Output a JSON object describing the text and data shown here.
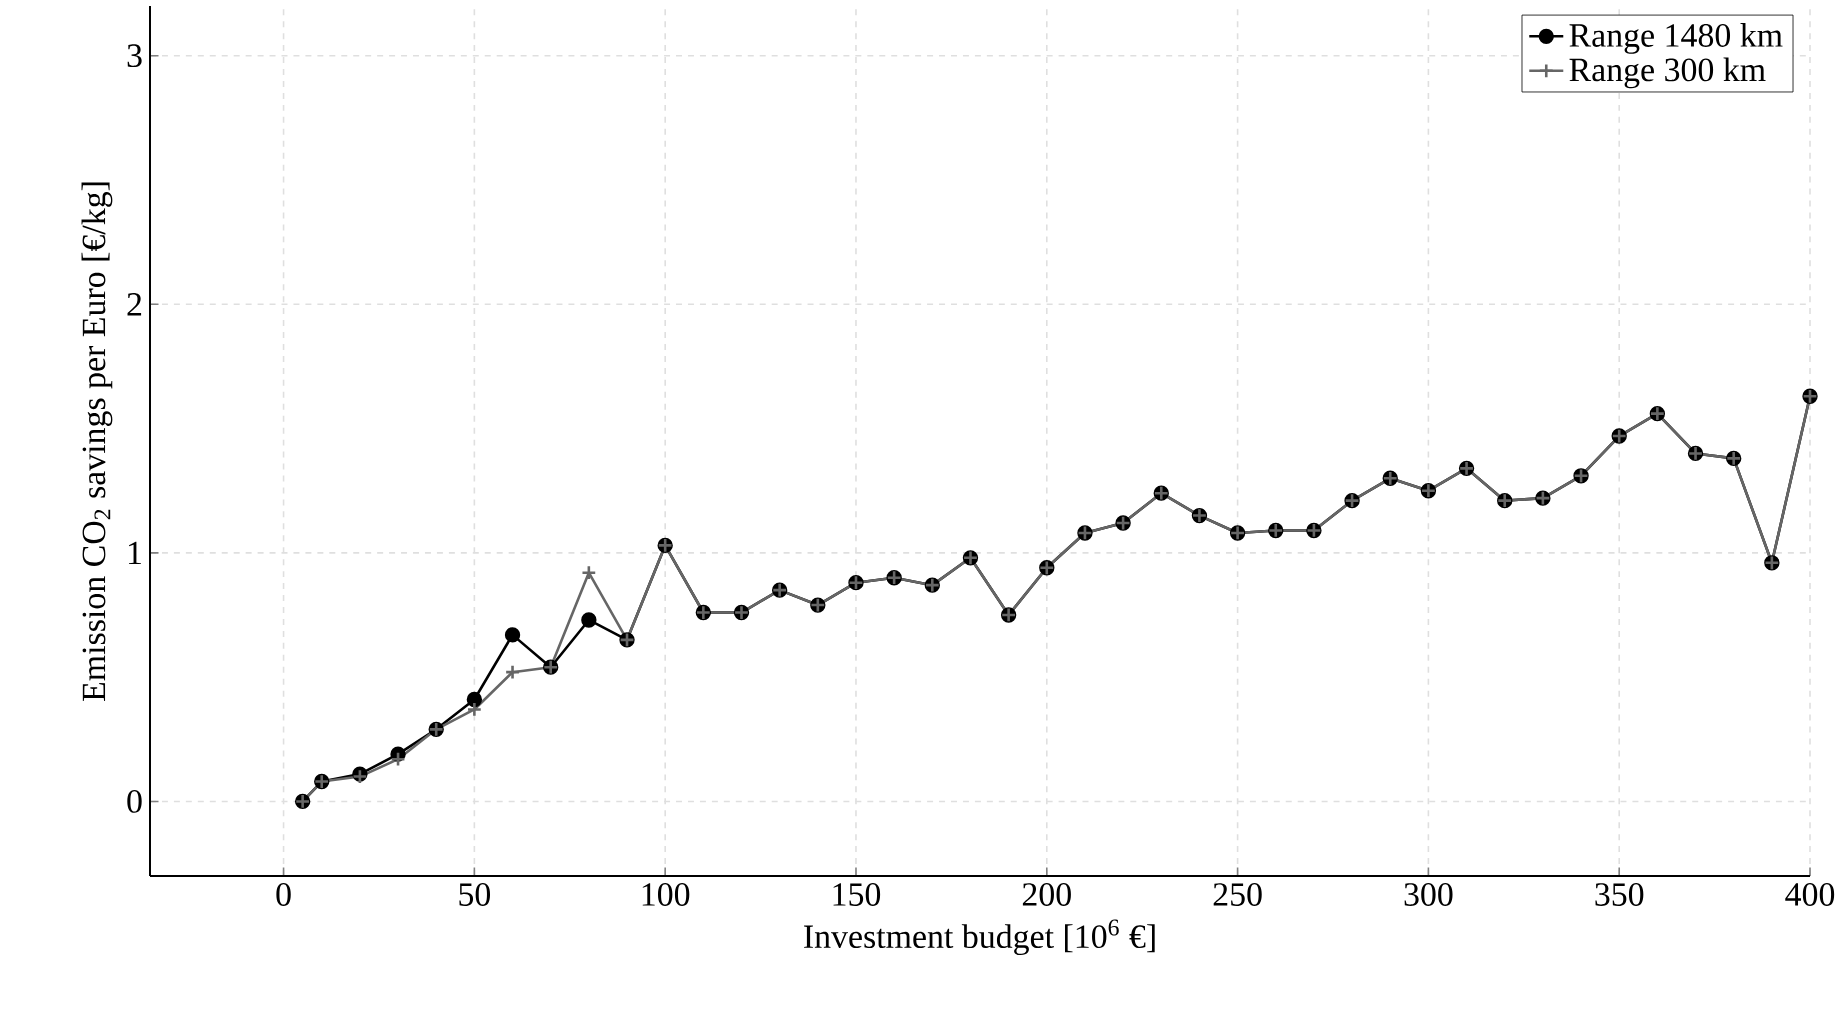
{
  "chart_data": {
    "type": "line",
    "xlabel": "Investment budget [10$^{6}$ €]",
    "ylabel": "Emission CO$_{2}$ savings per Euro [€/kg]",
    "x": [
      5,
      10,
      20,
      30,
      40,
      50,
      60,
      70,
      80,
      90,
      100,
      110,
      120,
      130,
      140,
      150,
      160,
      170,
      180,
      190,
      200,
      210,
      220,
      230,
      240,
      250,
      260,
      270,
      280,
      290,
      300,
      310,
      320,
      330,
      340,
      350,
      360,
      370,
      380,
      390,
      400
    ],
    "series": [
      {
        "name": "Range 1480 km",
        "color": "#000000",
        "marker": "circle",
        "values": [
          0.0,
          0.08,
          0.11,
          0.19,
          0.29,
          0.41,
          0.67,
          0.54,
          0.73,
          0.65,
          1.03,
          0.76,
          0.76,
          0.85,
          0.79,
          0.88,
          0.9,
          0.87,
          0.98,
          0.75,
          0.94,
          1.08,
          1.12,
          1.24,
          1.15,
          1.08,
          1.09,
          1.09,
          1.21,
          1.3,
          1.25,
          1.34,
          1.21,
          1.22,
          1.31,
          1.47,
          1.56,
          1.4,
          1.38,
          0.96,
          1.63
        ]
      },
      {
        "name": "Range 300 km",
        "color": "#666666",
        "marker": "cross",
        "values": [
          0.0,
          0.08,
          0.1,
          0.17,
          0.29,
          0.37,
          0.52,
          0.54,
          0.92,
          0.65,
          1.03,
          0.76,
          0.76,
          0.85,
          0.79,
          0.88,
          0.9,
          0.87,
          0.98,
          0.75,
          0.94,
          1.08,
          1.12,
          1.24,
          1.15,
          1.08,
          1.09,
          1.09,
          1.21,
          1.3,
          1.25,
          1.34,
          1.21,
          1.22,
          1.31,
          1.47,
          1.56,
          1.4,
          1.38,
          0.96,
          1.63
        ]
      }
    ],
    "xlim": [
      -35,
      400
    ],
    "ylim": [
      -0.3,
      3.2
    ],
    "xticks": [
      0,
      50,
      100,
      150,
      200,
      250,
      300,
      350,
      400
    ],
    "yticks": [
      0,
      1,
      2,
      3
    ],
    "grid": true,
    "legend": "top right",
    "line_style": "solid"
  }
}
